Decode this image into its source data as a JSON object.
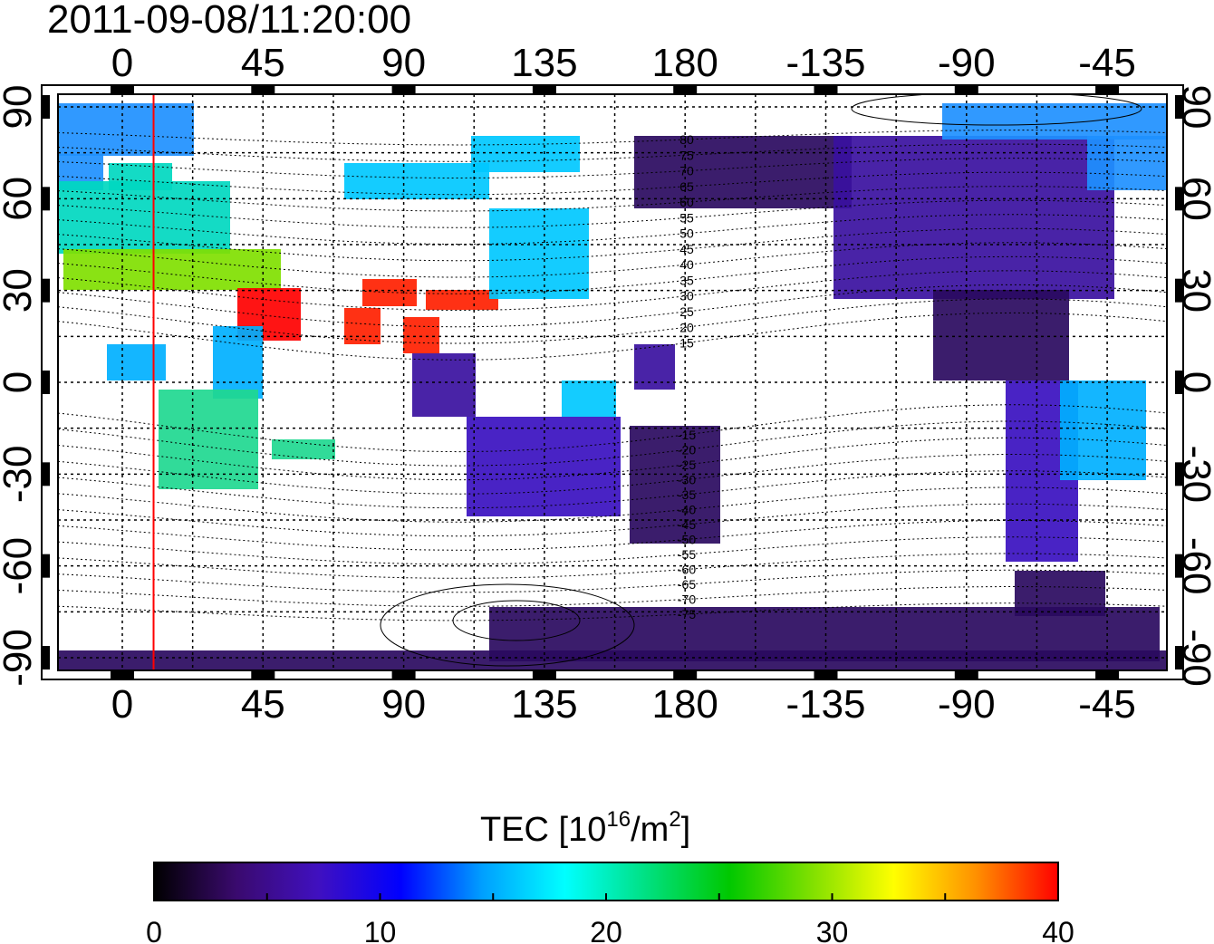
{
  "title": "2011-09-08/11:20:00",
  "map": {
    "x_ticks": [
      "0",
      "45",
      "90",
      "135",
      "180",
      "-135",
      "-90",
      "-45"
    ],
    "y_ticks": [
      "90",
      "60",
      "30",
      "0",
      "-30",
      "-60",
      "-90"
    ],
    "grid": true,
    "marker_longitude": 10,
    "marker_color": "#ff0000",
    "contour_labels": [
      "80",
      "75",
      "70",
      "65",
      "60",
      "55",
      "50",
      "45",
      "40",
      "35",
      "30",
      "25",
      "20",
      "15",
      "-15",
      "-20",
      "-25",
      "-30",
      "-35",
      "-40",
      "-45",
      "-50",
      "-55",
      "-60",
      "-65",
      "-70",
      "-75"
    ]
  },
  "colorbar": {
    "label_main": "TEC  [10",
    "label_sup1": "16",
    "label_mid": "/m",
    "label_sup2": "2",
    "label_end": "]",
    "ticks": [
      "0",
      "10",
      "20",
      "30",
      "40"
    ],
    "stops": [
      "#000000",
      "#3a0a6e",
      "#4010c0",
      "#0000ff",
      "#00a0ff",
      "#00ffff",
      "#00e080",
      "#00c800",
      "#80e000",
      "#ffff00",
      "#ff9000",
      "#ff0000"
    ]
  },
  "regions": [
    {
      "name": "arctic-europe",
      "color": "#1e90ff"
    },
    {
      "name": "europe",
      "color": "#00d8c0"
    },
    {
      "name": "north-africa",
      "color": "#80e000"
    },
    {
      "name": "middle-east",
      "color": "#ff0000"
    },
    {
      "name": "south-asia",
      "color": "#ff2000"
    },
    {
      "name": "east-asia",
      "color": "#00c8ff"
    },
    {
      "name": "south-africa",
      "color": "#20d890"
    },
    {
      "name": "australia",
      "color": "#3a10c0"
    },
    {
      "name": "north-america",
      "color": "#3a10a0"
    },
    {
      "name": "south-america",
      "color": "#2020e0"
    },
    {
      "name": "brazil",
      "color": "#00b0ff"
    },
    {
      "name": "antarctica",
      "color": "#2a0a60"
    }
  ]
}
